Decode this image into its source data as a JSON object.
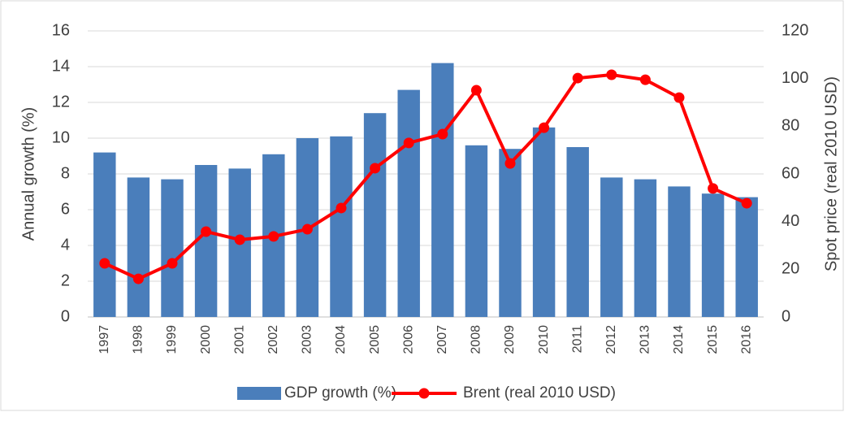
{
  "chart_data": {
    "type": "bar_line",
    "categories": [
      "1997",
      "1998",
      "1999",
      "2000",
      "2001",
      "2002",
      "2003",
      "2004",
      "2005",
      "2006",
      "2007",
      "2008",
      "2009",
      "2010",
      "2011",
      "2012",
      "2013",
      "2014",
      "2015",
      "2016"
    ],
    "series": [
      {
        "name": "GDP growth (%)",
        "type": "bar",
        "color": "#4a7ebb",
        "values": [
          9.2,
          7.8,
          7.7,
          8.5,
          8.3,
          9.1,
          10.0,
          10.1,
          11.4,
          12.7,
          14.2,
          9.6,
          9.4,
          10.6,
          9.5,
          7.8,
          7.7,
          7.3,
          6.9,
          6.7
        ]
      },
      {
        "name": "Brent (real 2010 USD)",
        "type": "line",
        "axis": "y2",
        "color": "#ff0000",
        "values": [
          22.5,
          16,
          22.5,
          35.8,
          32.4,
          33.8,
          36.8,
          45.7,
          62.4,
          73,
          76.7,
          95.1,
          64.4,
          79.4,
          100.2,
          101.6,
          99.5,
          92,
          53.9,
          47.7
        ]
      }
    ],
    "y_label": "Annual growth (%)",
    "y2_label": "Spot price (real 2010 USD)",
    "ylim": [
      0,
      16
    ],
    "yticks": [
      0,
      2,
      4,
      6,
      8,
      10,
      12,
      14,
      16
    ],
    "y2lim": [
      0,
      120
    ],
    "y2ticks": [
      0,
      20,
      40,
      60,
      80,
      100,
      120
    ],
    "grid": true,
    "legend": "bottom"
  }
}
